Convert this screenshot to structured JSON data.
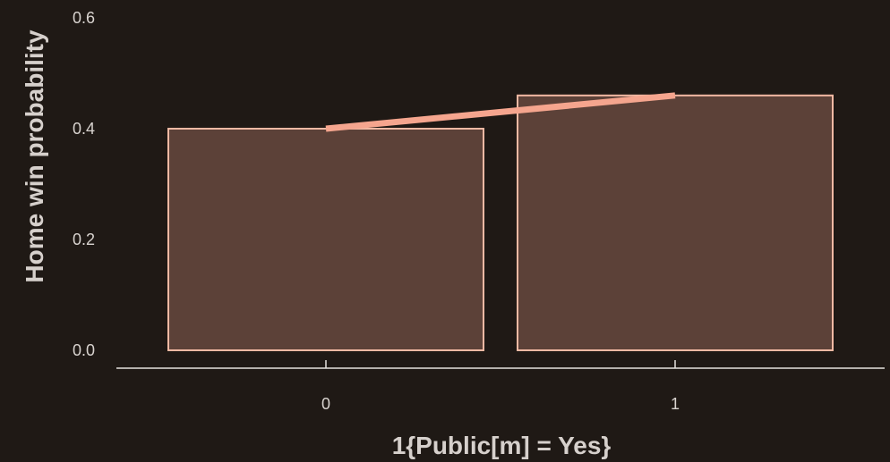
{
  "chart_data": {
    "type": "bar",
    "title": "",
    "xlabel": "1{Public[m] = Yes}",
    "ylabel": "Home win probability",
    "categories": [
      "0",
      "1"
    ],
    "values": [
      0.4,
      0.46
    ],
    "ylim": [
      0,
      0.6
    ],
    "yticks": [
      "0.0",
      "0.2",
      "0.4",
      "0.6"
    ],
    "grid": false,
    "legend": "none",
    "overlay_line": {
      "type": "line",
      "x": [
        "0",
        "1"
      ],
      "y": [
        0.4,
        0.46
      ]
    },
    "colors": {
      "background": "#1f1915",
      "bar_fill": "#5c4138",
      "bar_stroke": "#f3b9a3",
      "line": "#f5a58e",
      "axis": "#e6e2de",
      "text": "#d9d4d0"
    }
  }
}
